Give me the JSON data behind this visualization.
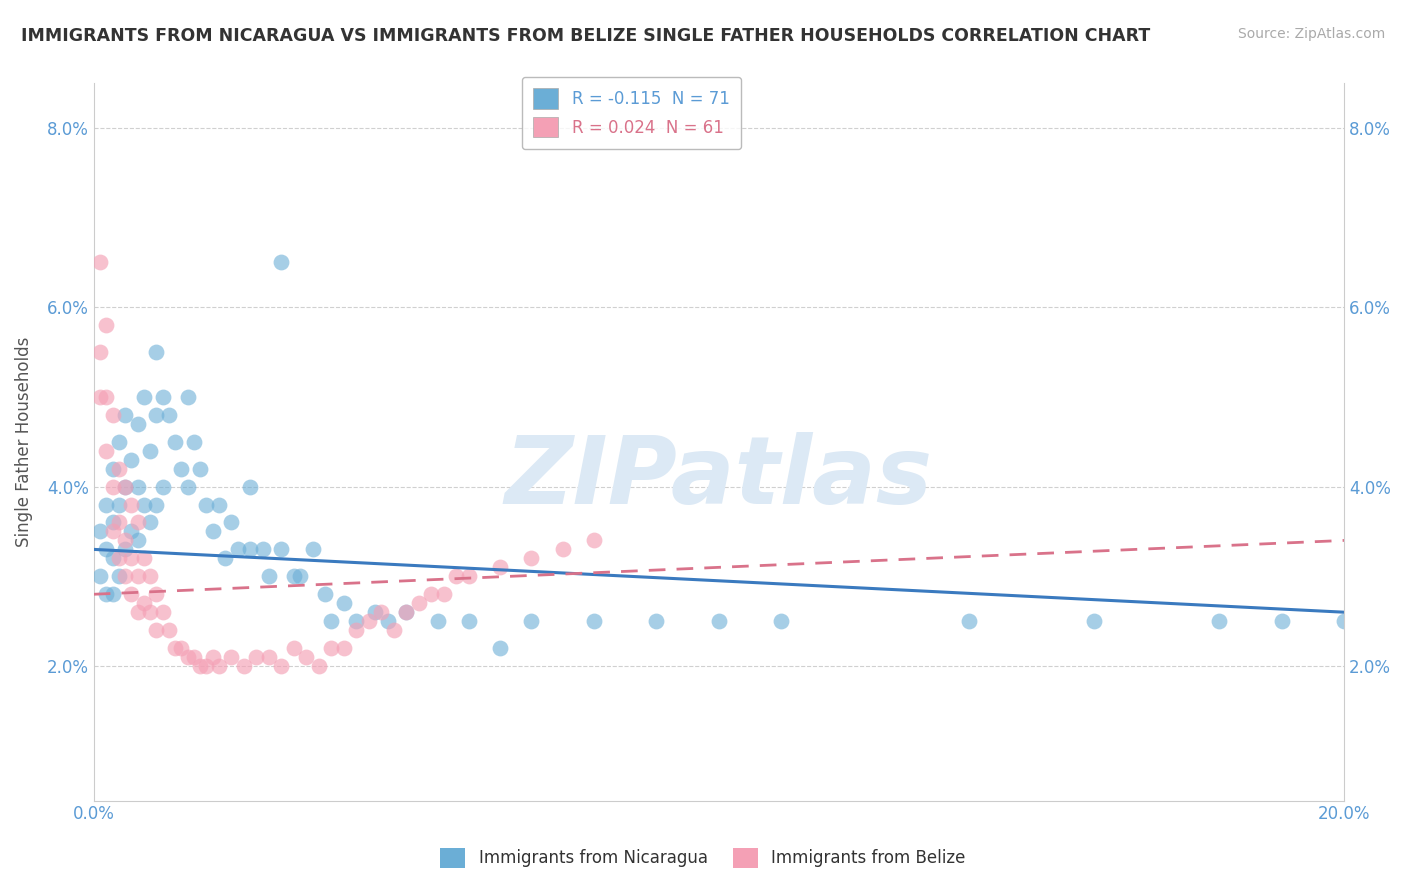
{
  "title": "IMMIGRANTS FROM NICARAGUA VS IMMIGRANTS FROM BELIZE SINGLE FATHER HOUSEHOLDS CORRELATION CHART",
  "source": "Source: ZipAtlas.com",
  "ylabel": "Single Father Households",
  "xlim": [
    0.0,
    0.2
  ],
  "ylim": [
    0.005,
    0.085
  ],
  "yticks": [
    0.02,
    0.04,
    0.06,
    0.08
  ],
  "ytick_labels": [
    "2.0%",
    "4.0%",
    "6.0%",
    "8.0%"
  ],
  "xticks": [
    0.0,
    0.025,
    0.05,
    0.075,
    0.1,
    0.125,
    0.15,
    0.175,
    0.2
  ],
  "xtick_labels": [
    "0.0%",
    "",
    "",
    "",
    "",
    "",
    "",
    "",
    "20.0%"
  ],
  "color_nicaragua": "#6baed6",
  "color_belize": "#f4a0b5",
  "color_line_nicaragua": "#3a7abf",
  "color_line_belize": "#d9728a",
  "watermark_color": "#dce9f5",
  "nicaragua_x": [
    0.001,
    0.001,
    0.002,
    0.002,
    0.002,
    0.003,
    0.003,
    0.003,
    0.003,
    0.004,
    0.004,
    0.004,
    0.005,
    0.005,
    0.005,
    0.006,
    0.006,
    0.007,
    0.007,
    0.007,
    0.008,
    0.008,
    0.009,
    0.009,
    0.01,
    0.01,
    0.01,
    0.011,
    0.011,
    0.012,
    0.013,
    0.014,
    0.015,
    0.015,
    0.016,
    0.017,
    0.018,
    0.019,
    0.02,
    0.021,
    0.022,
    0.023,
    0.025,
    0.025,
    0.027,
    0.028,
    0.03,
    0.032,
    0.033,
    0.035,
    0.037,
    0.038,
    0.04,
    0.042,
    0.045,
    0.047,
    0.05,
    0.055,
    0.06,
    0.065,
    0.07,
    0.08,
    0.09,
    0.1,
    0.11,
    0.14,
    0.16,
    0.18,
    0.19,
    0.2,
    0.03
  ],
  "nicaragua_y": [
    0.035,
    0.03,
    0.038,
    0.033,
    0.028,
    0.042,
    0.036,
    0.032,
    0.028,
    0.045,
    0.038,
    0.03,
    0.048,
    0.04,
    0.033,
    0.043,
    0.035,
    0.047,
    0.04,
    0.034,
    0.05,
    0.038,
    0.044,
    0.036,
    0.055,
    0.048,
    0.038,
    0.05,
    0.04,
    0.048,
    0.045,
    0.042,
    0.05,
    0.04,
    0.045,
    0.042,
    0.038,
    0.035,
    0.038,
    0.032,
    0.036,
    0.033,
    0.04,
    0.033,
    0.033,
    0.03,
    0.033,
    0.03,
    0.03,
    0.033,
    0.028,
    0.025,
    0.027,
    0.025,
    0.026,
    0.025,
    0.026,
    0.025,
    0.025,
    0.022,
    0.025,
    0.025,
    0.025,
    0.025,
    0.025,
    0.025,
    0.025,
    0.025,
    0.025,
    0.025,
    0.065
  ],
  "belize_x": [
    0.001,
    0.001,
    0.001,
    0.002,
    0.002,
    0.002,
    0.003,
    0.003,
    0.003,
    0.004,
    0.004,
    0.004,
    0.005,
    0.005,
    0.005,
    0.006,
    0.006,
    0.006,
    0.007,
    0.007,
    0.007,
    0.008,
    0.008,
    0.009,
    0.009,
    0.01,
    0.01,
    0.011,
    0.012,
    0.013,
    0.014,
    0.015,
    0.016,
    0.017,
    0.018,
    0.019,
    0.02,
    0.022,
    0.024,
    0.026,
    0.028,
    0.03,
    0.032,
    0.034,
    0.036,
    0.038,
    0.04,
    0.042,
    0.044,
    0.046,
    0.048,
    0.05,
    0.052,
    0.054,
    0.056,
    0.058,
    0.06,
    0.065,
    0.07,
    0.075,
    0.08
  ],
  "belize_y": [
    0.065,
    0.055,
    0.05,
    0.058,
    0.05,
    0.044,
    0.048,
    0.04,
    0.035,
    0.042,
    0.036,
    0.032,
    0.04,
    0.034,
    0.03,
    0.038,
    0.032,
    0.028,
    0.036,
    0.03,
    0.026,
    0.032,
    0.027,
    0.03,
    0.026,
    0.028,
    0.024,
    0.026,
    0.024,
    0.022,
    0.022,
    0.021,
    0.021,
    0.02,
    0.02,
    0.021,
    0.02,
    0.021,
    0.02,
    0.021,
    0.021,
    0.02,
    0.022,
    0.021,
    0.02,
    0.022,
    0.022,
    0.024,
    0.025,
    0.026,
    0.024,
    0.026,
    0.027,
    0.028,
    0.028,
    0.03,
    0.03,
    0.031,
    0.032,
    0.033,
    0.034
  ],
  "nic_line_x": [
    0.0,
    0.2
  ],
  "nic_line_y": [
    0.033,
    0.026
  ],
  "bel_line_x": [
    0.0,
    0.2
  ],
  "bel_line_y": [
    0.028,
    0.034
  ]
}
